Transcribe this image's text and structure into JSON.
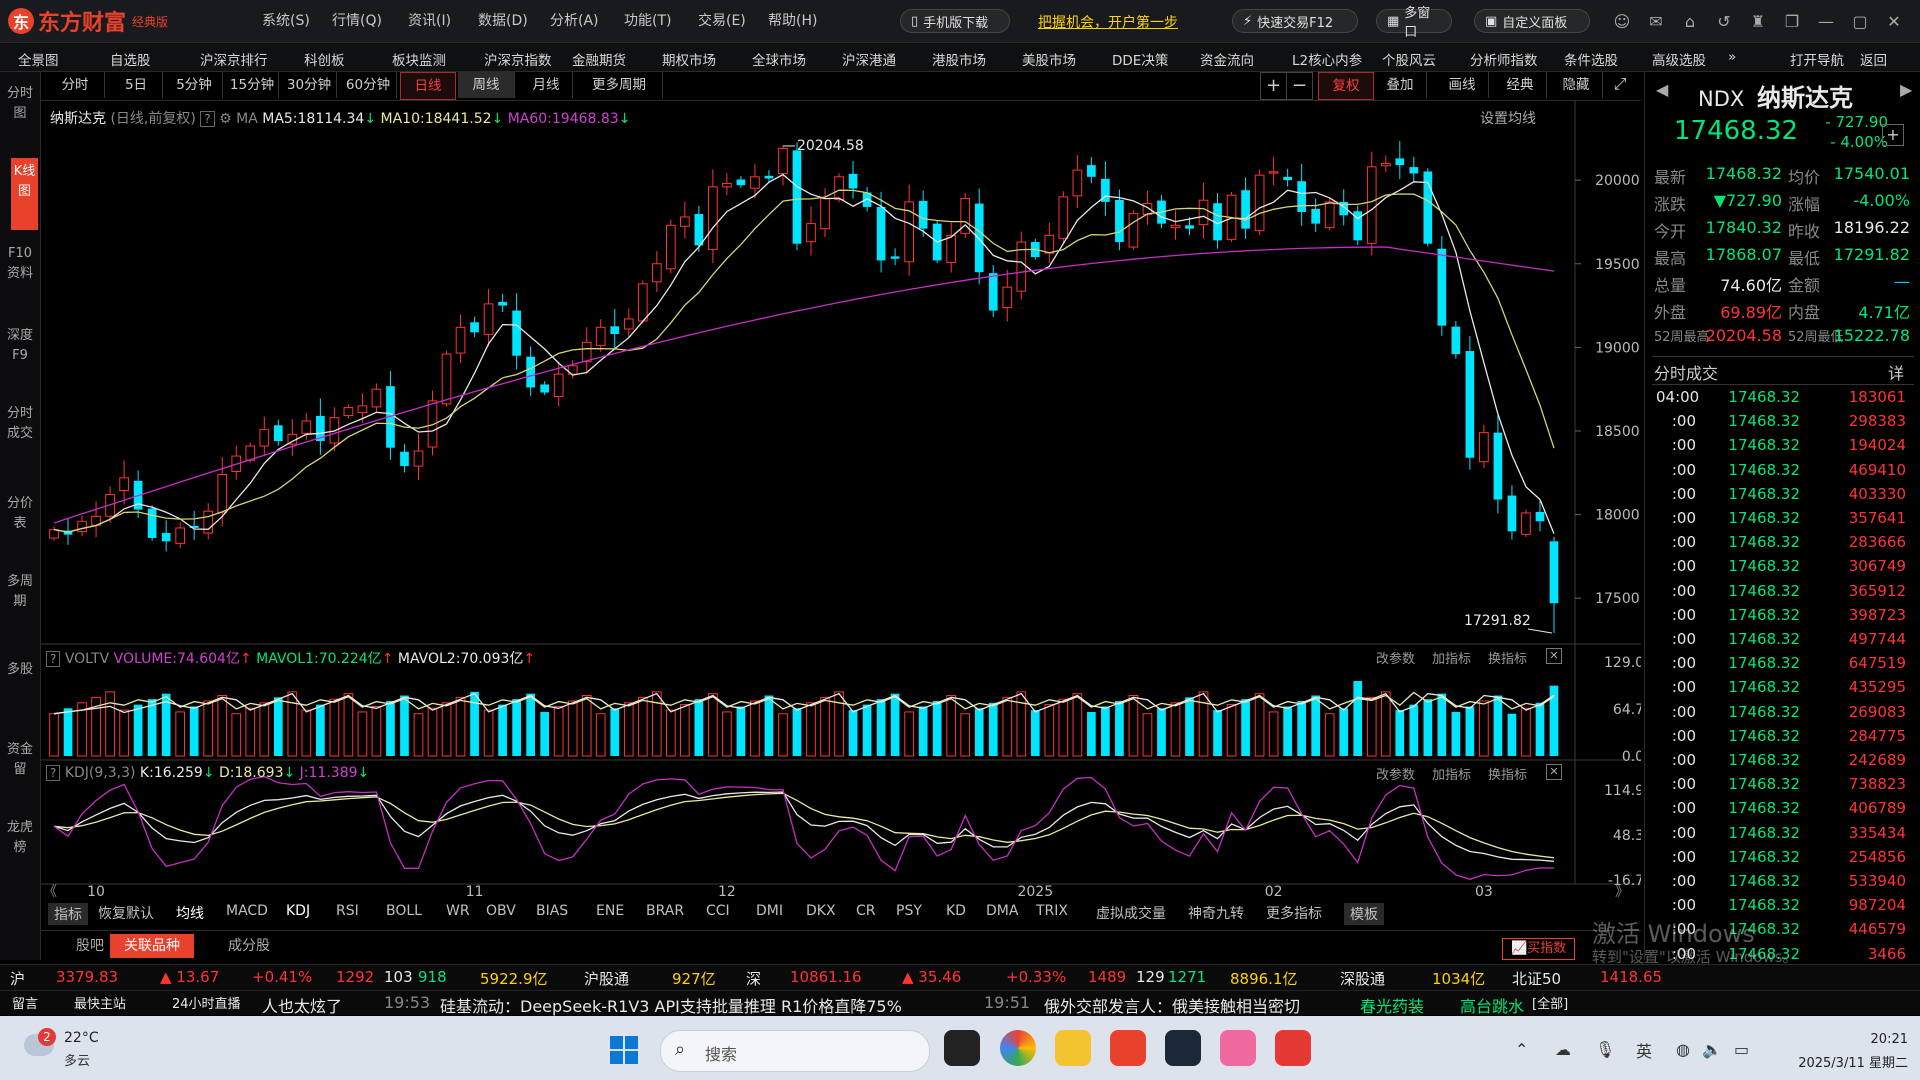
{
  "app": {
    "logo_text": "东方财富",
    "edition": "经典版",
    "menus": [
      "系统(S)",
      "行情(Q)",
      "资讯(I)",
      "数据(D)",
      "分析(A)",
      "功能(T)",
      "交易(E)",
      "帮助(H)"
    ],
    "mobile_download": "手机版下载",
    "promo": "把握机会，开户第一步",
    "quick_trade": "快速交易F12",
    "multi_window": "多窗口",
    "custom_panel": "自定义面板"
  },
  "nav": {
    "items": [
      "全景图",
      "自选股",
      "沪深京排行",
      "科创板",
      "板块监测",
      "沪深京指数",
      "金融期货",
      "期权市场",
      "全球市场",
      "沪深港通",
      "港股市场",
      "美股市场",
      "DDE决策",
      "资金流向",
      "L2核心内参",
      "个股风云",
      "分析师指数",
      "条件选股",
      "高级选股",
      "»",
      "打开导航",
      "返回"
    ]
  },
  "sidebar": {
    "items": [
      "分时图",
      "K线图",
      "F10资料",
      "深度F9",
      "分时成交",
      "分价表",
      "多周期",
      "多股",
      "资金留",
      "龙虎榜"
    ]
  },
  "periods": {
    "items": [
      "分时",
      "5日",
      "5分钟",
      "15分钟",
      "30分钟",
      "60分钟",
      "日线",
      "周线",
      "月线",
      "更多周期"
    ],
    "selected": "日线",
    "tools": [
      "复权",
      "叠加",
      "画线",
      "经典",
      "隐藏"
    ]
  },
  "chart_header": {
    "name": "纳斯达克",
    "mode": "(日线,前复权)",
    "ma_label": "MA",
    "ma5": "MA5:18114.34",
    "ma10": "MA10:18441.52",
    "ma60": "MA60:19468.83",
    "settings": "设置均线"
  },
  "volume_header": {
    "name": "VOLTV",
    "volume": "VOLUME:74.604亿",
    "mavol1": "MAVOL1:70.224亿",
    "mavol2": "MAVOL2:70.093亿",
    "actions": [
      "改参数",
      "加指标",
      "换指标"
    ]
  },
  "kdj_header": {
    "name": "KDJ(9,3,3)",
    "k": "K:16.259",
    "d": "D:18.693",
    "j": "J:11.389"
  },
  "chart_data": [
    {
      "type": "candlestick",
      "title": "纳斯达克",
      "y_ticks": [
        "20000.0",
        "19500.0",
        "19000.0",
        "18500.0",
        "18000.0",
        "17500.0"
      ],
      "ylim": [
        17250,
        20300
      ],
      "x_ticks": [
        "10",
        "11",
        "12",
        "2025",
        "02",
        "03"
      ],
      "annotations": {
        "high": "20204.58",
        "low": "17291.82"
      },
      "series_names": [
        "MA5",
        "MA10",
        "MA60"
      ],
      "colors": {
        "up": "#ff3333",
        "down": "#00e5ff",
        "ma5": "#e8e8e8",
        "ma10": "#d4d47a",
        "ma60": "#c62fc6"
      },
      "closes": [
        17910,
        17880,
        17960,
        17990,
        18120,
        18220,
        18030,
        17860,
        17840,
        17920,
        17920,
        18020,
        18240,
        18350,
        18410,
        18510,
        18440,
        18480,
        18560,
        18440,
        18580,
        18640,
        18650,
        18750,
        18400,
        18290,
        18380,
        18680,
        18960,
        19120,
        19090,
        19260,
        19250,
        18950,
        18760,
        18730,
        18840,
        18890,
        19030,
        19120,
        19080,
        19170,
        19380,
        19500,
        19730,
        19780,
        19610,
        19960,
        19980,
        19970,
        20020,
        20010,
        20190,
        19620,
        19740,
        19890,
        20020,
        19950,
        19840,
        19520,
        19530,
        19870,
        19710,
        19520,
        19670,
        19890,
        19450,
        19220,
        19360,
        19630,
        19540,
        19670,
        19900,
        20060,
        20020,
        19870,
        19630,
        19800,
        19860,
        19740,
        19730,
        19710,
        19880,
        19640,
        19910,
        19710,
        20030,
        20050,
        20000,
        19810,
        19740,
        19870,
        19790,
        19640,
        20080,
        20100,
        20090,
        20040,
        19620,
        19130,
        18960,
        18340,
        18490,
        18090,
        17900,
        18010,
        17960,
        17470
      ],
      "volume_ylim": [
        0,
        129
      ],
      "volume_ticks": [
        "129.00",
        "64.70",
        "0.00"
      ],
      "kdj_ticks": [
        "114.93",
        "48.32",
        "-16.77"
      ]
    }
  ],
  "indicators": {
    "items": [
      "指标",
      "恢复默认",
      "均线",
      "MACD",
      "KDJ",
      "RSI",
      "BOLL",
      "WR",
      "OBV",
      "BIAS",
      "ENE",
      "BRAR",
      "CCI",
      "DMI",
      "DKX",
      "CR",
      "PSY",
      "KD",
      "DMA",
      "TRIX",
      "虚拟成交量",
      "神奇九转",
      "更多指标",
      "模板"
    ]
  },
  "bottom_tabs": {
    "items": [
      "股吧",
      "关联品种",
      "成分股"
    ],
    "buy_index": "买指数"
  },
  "quote": {
    "code": "NDX",
    "name": "纳斯达克",
    "price": "17468.32",
    "change": "- 727.90",
    "change_pct": "- 4.00%",
    "rows": [
      {
        "l1": "最新",
        "v1": "17468.32",
        "c1": "green",
        "l2": "均价",
        "v2": "17540.01",
        "c2": "green"
      },
      {
        "l1": "涨跌",
        "v1": "▼727.90",
        "c1": "green",
        "l2": "涨幅",
        "v2": "-4.00%",
        "c2": "green"
      },
      {
        "l1": "今开",
        "v1": "17840.32",
        "c1": "green",
        "l2": "昨收",
        "v2": "18196.22",
        "c2": "white"
      },
      {
        "l1": "最高",
        "v1": "17868.07",
        "c1": "green",
        "l2": "最低",
        "v2": "17291.82",
        "c2": "green"
      },
      {
        "l1": "总量",
        "v1": "74.60亿",
        "c1": "white",
        "l2": "金额",
        "v2": "—",
        "c2": "cyan"
      },
      {
        "l1": "外盘",
        "v1": "69.89亿",
        "c1": "red",
        "l2": "内盘",
        "v2": "4.71亿",
        "c2": "green"
      },
      {
        "l1": "52周最高",
        "v1": "20204.58",
        "c1": "red",
        "l2": "52周最低",
        "v2": "15222.78",
        "c2": "green"
      }
    ],
    "ticks_title": "分时成交",
    "ticks_detail": "详",
    "ticks": [
      {
        "t": "04:00",
        "p": "17468.32",
        "v": "183061"
      },
      {
        "t": ":00",
        "p": "17468.32",
        "v": "298383"
      },
      {
        "t": ":00",
        "p": "17468.32",
        "v": "194024"
      },
      {
        "t": ":00",
        "p": "17468.32",
        "v": "469410"
      },
      {
        "t": ":00",
        "p": "17468.32",
        "v": "403330"
      },
      {
        "t": ":00",
        "p": "17468.32",
        "v": "357641"
      },
      {
        "t": ":00",
        "p": "17468.32",
        "v": "283666"
      },
      {
        "t": ":00",
        "p": "17468.32",
        "v": "306749"
      },
      {
        "t": ":00",
        "p": "17468.32",
        "v": "365912"
      },
      {
        "t": ":00",
        "p": "17468.32",
        "v": "398723"
      },
      {
        "t": ":00",
        "p": "17468.32",
        "v": "497744"
      },
      {
        "t": ":00",
        "p": "17468.32",
        "v": "647519"
      },
      {
        "t": ":00",
        "p": "17468.32",
        "v": "435295"
      },
      {
        "t": ":00",
        "p": "17468.32",
        "v": "269083"
      },
      {
        "t": ":00",
        "p": "17468.32",
        "v": "284775"
      },
      {
        "t": ":00",
        "p": "17468.32",
        "v": "242689"
      },
      {
        "t": ":00",
        "p": "17468.32",
        "v": "738823"
      },
      {
        "t": ":00",
        "p": "17468.32",
        "v": "406789"
      },
      {
        "t": ":00",
        "p": "17468.32",
        "v": "335434"
      },
      {
        "t": ":00",
        "p": "17468.32",
        "v": "254856"
      },
      {
        "t": ":00",
        "p": "17468.32",
        "v": "533940"
      },
      {
        "t": ":00",
        "p": "17468.32",
        "v": "987204"
      },
      {
        "t": ":00",
        "p": "17468.32",
        "v": "446579"
      },
      {
        "t": ":00",
        "p": "17468.32",
        "v": "3466"
      }
    ]
  },
  "status": {
    "sh_label": "沪",
    "sh_index": "3379.83",
    "sh_change": "▲ 13.67",
    "sh_pct": "+0.41%",
    "sh_up": "1292",
    "sh_flat": "103",
    "sh_down": "918",
    "sh_amount": "5922.9亿",
    "hgt_label": "沪股通",
    "hgt_value": "927亿",
    "sz_label": "深",
    "sz_index": "10861.16",
    "sz_change": "▲ 35.46",
    "sz_pct": "+0.33%",
    "sz_up": "1489",
    "sz_flat": "129",
    "sz_down": "1271",
    "sz_amount": "8896.1亿",
    "sgt_label": "深股通",
    "sgt_value": "1034亿",
    "bz_label": "北证50",
    "bz_value": "1418.65",
    "news_items": [
      "留言",
      "最快主站",
      "24小时直播",
      "人也太炫了",
      "19:53",
      "硅基流动：DeepSeek-R1V3 API支持批量推理 R1价格直降75%",
      "19:51",
      "俄外交部发言人：俄美接触相当密切",
      "春光药装",
      "高台跳水",
      "[全部]"
    ],
    "windows_watermark": "激活 Windows",
    "windows_watermark2": "转到\"设置\"以激活 Windows。"
  },
  "taskbar": {
    "weather_temp": "22°C",
    "weather_desc": "多云",
    "weather_badge": "2",
    "search": "搜索",
    "time": "20:21",
    "date": "2025/3/11 星期二",
    "ime": "英"
  }
}
